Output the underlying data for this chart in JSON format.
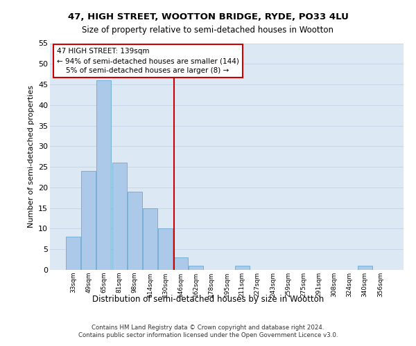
{
  "title1": "47, HIGH STREET, WOOTTON BRIDGE, RYDE, PO33 4LU",
  "title2": "Size of property relative to semi-detached houses in Wootton",
  "xlabel": "Distribution of semi-detached houses by size in Wootton",
  "ylabel": "Number of semi-detached properties",
  "footnote1": "Contains HM Land Registry data © Crown copyright and database right 2024.",
  "footnote2": "Contains public sector information licensed under the Open Government Licence v3.0.",
  "categories": [
    "33sqm",
    "49sqm",
    "65sqm",
    "81sqm",
    "98sqm",
    "114sqm",
    "130sqm",
    "146sqm",
    "162sqm",
    "178sqm",
    "195sqm",
    "211sqm",
    "227sqm",
    "243sqm",
    "259sqm",
    "275sqm",
    "291sqm",
    "308sqm",
    "324sqm",
    "340sqm",
    "356sqm"
  ],
  "values": [
    8,
    24,
    46,
    26,
    19,
    15,
    10,
    3,
    1,
    0,
    0,
    1,
    0,
    0,
    0,
    0,
    0,
    0,
    0,
    1,
    0
  ],
  "bar_color": "#adc9e9",
  "bar_edge_color": "#6aaad4",
  "grid_color": "#c8d8ea",
  "bg_color": "#dce9f5",
  "vline_color": "#cc0000",
  "annotation_line1": "47 HIGH STREET: 139sqm",
  "annotation_line2": "← 94% of semi-detached houses are smaller (144)",
  "annotation_line3": "    5% of semi-detached houses are larger (8) →",
  "annotation_box_color": "#ffffff",
  "annotation_border_color": "#cc0000",
  "ylim": [
    0,
    55
  ],
  "yticks": [
    0,
    5,
    10,
    15,
    20,
    25,
    30,
    35,
    40,
    45,
    50,
    55
  ],
  "vline_position": 6.56
}
